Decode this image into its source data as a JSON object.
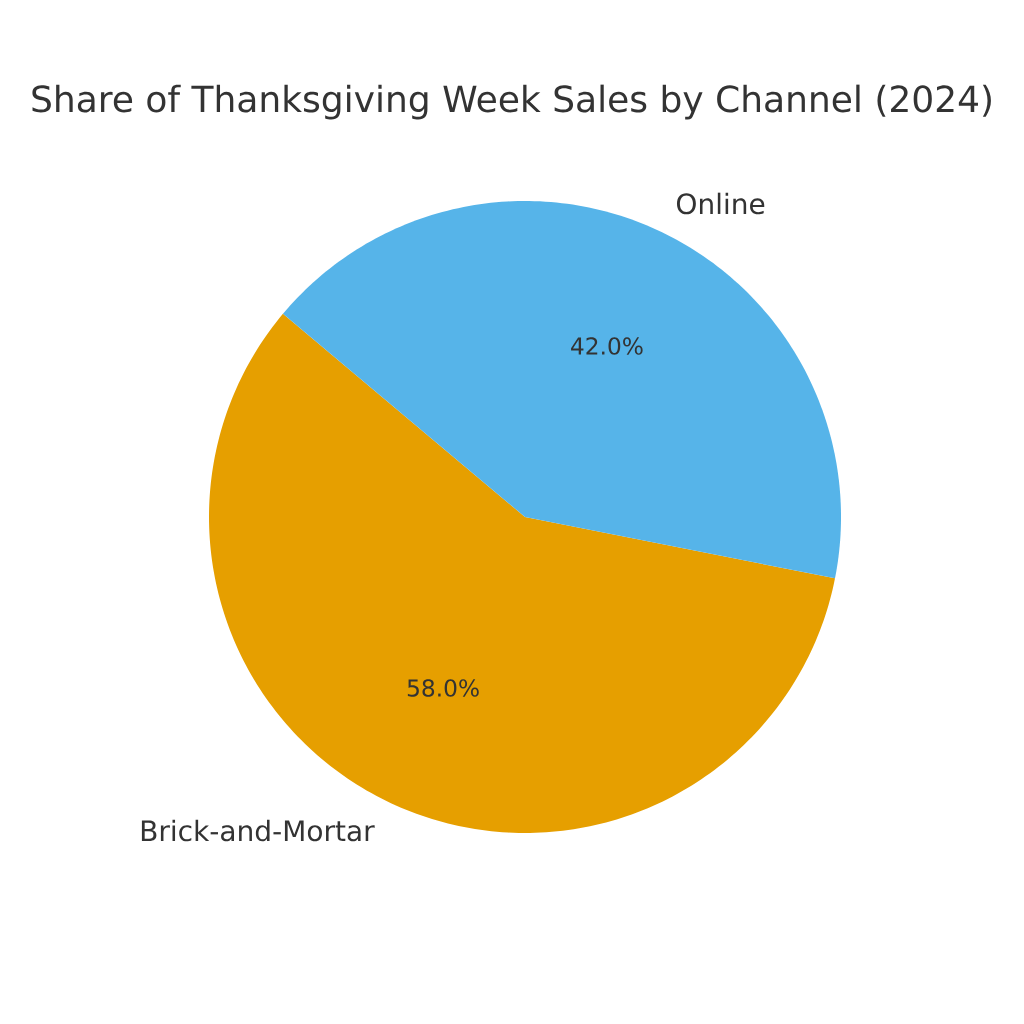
{
  "chart_data": {
    "type": "pie",
    "title": "Share of Thanksgiving Week Sales by Channel (2024)",
    "categories": [
      "Brick-and-Mortar",
      "Online"
    ],
    "values": [
      58,
      42
    ],
    "colors": [
      "#e69f00",
      "#56b4e9"
    ],
    "value_labels": [
      "58.0%",
      "42.0%"
    ]
  }
}
